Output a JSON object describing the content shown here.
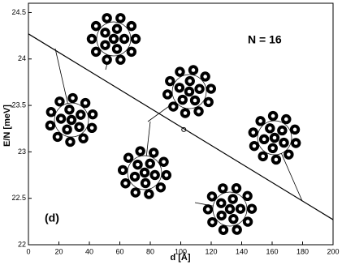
{
  "chart_data": {
    "type": "line",
    "x_label": "d [Å]",
    "y_label": "E/N [meV]",
    "annotations": [
      "N = 16",
      "(d)"
    ],
    "x": [
      0,
      200
    ],
    "values": [
      24.27,
      22.27
    ],
    "color": "#000000",
    "marker_point": {
      "x": 102,
      "y": 23.24
    },
    "xlim": [
      0,
      200
    ],
    "xticks": [
      0,
      20,
      40,
      60,
      80,
      100,
      120,
      140,
      160,
      180,
      200
    ],
    "ylim": [
      22,
      24.6
    ],
    "yticks": [
      22,
      22.5,
      23,
      23.5,
      24,
      24.5
    ]
  }
}
